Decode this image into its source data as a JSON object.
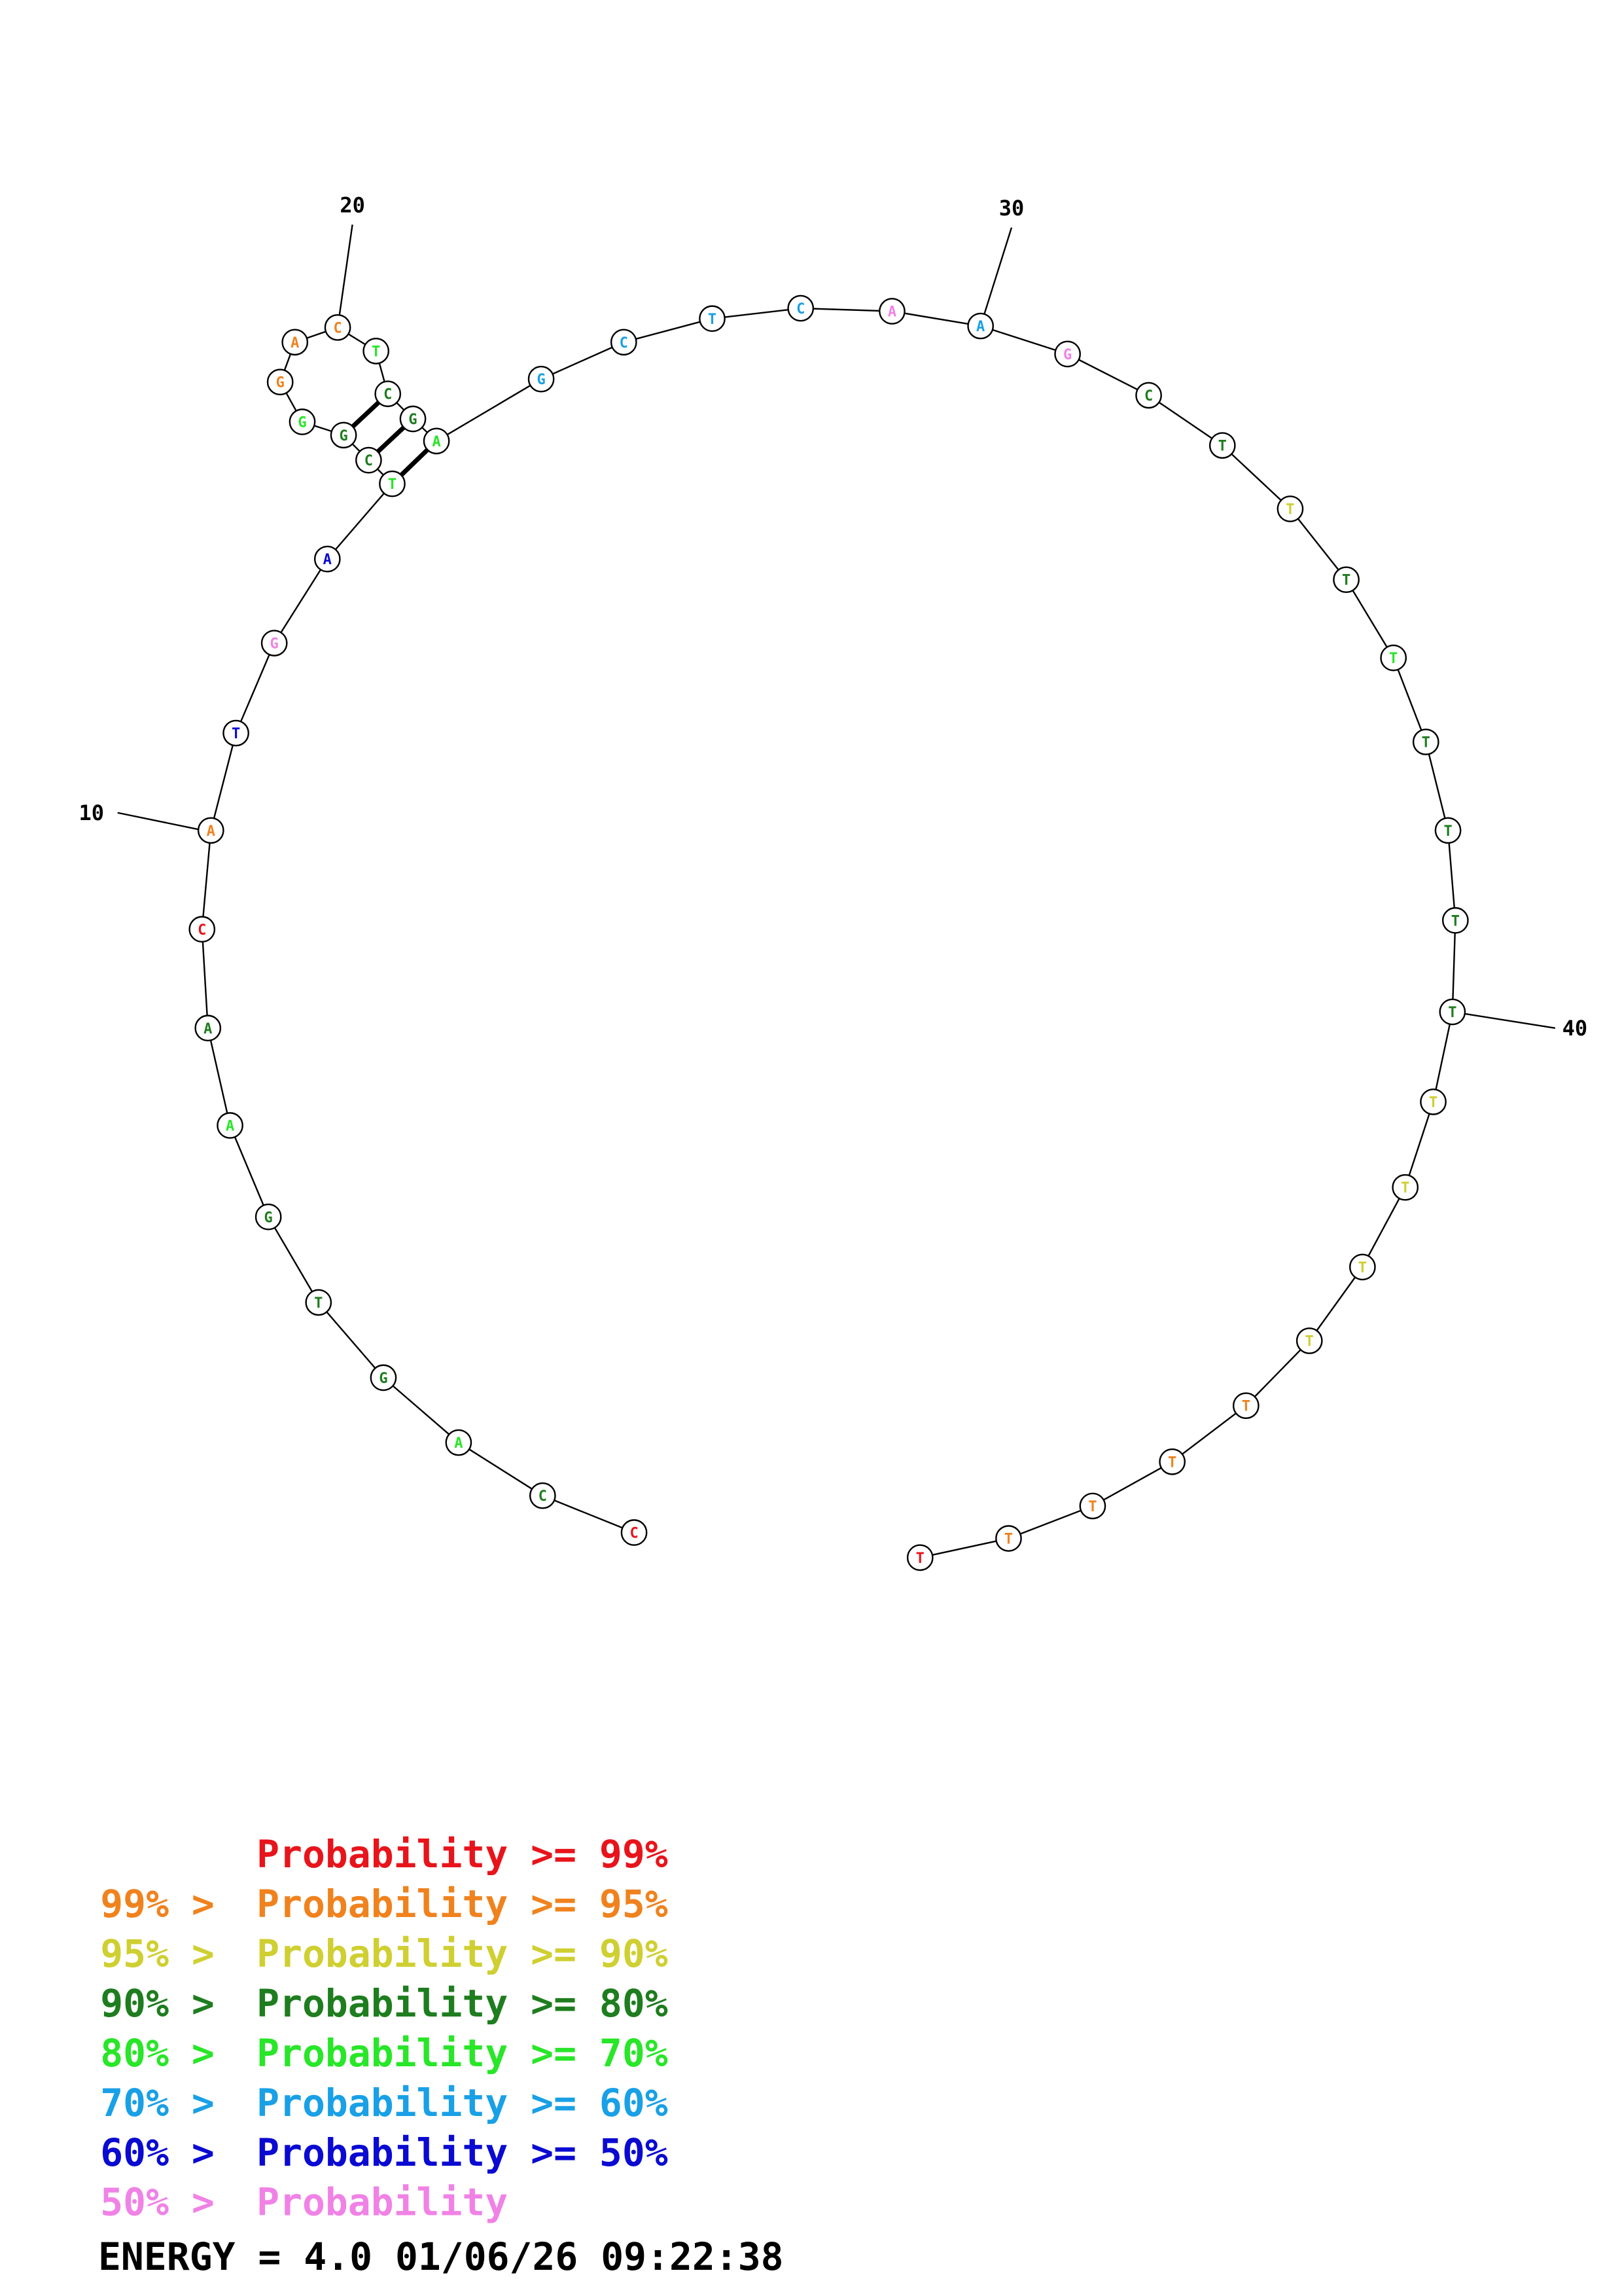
{
  "colors": {
    "p99": "#e8141b",
    "p95": "#f0821e",
    "p90": "#cfcf32",
    "p80": "#1e7d1e",
    "p70": "#28e628",
    "p60": "#19a0e6",
    "p50": "#0a0ad2",
    "plow": "#f082e6"
  },
  "structure": {
    "nucleotides": [
      {
        "base": "C",
        "prob": "p99"
      },
      {
        "base": "C",
        "prob": "p80"
      },
      {
        "base": "A",
        "prob": "p70"
      },
      {
        "base": "G",
        "prob": "p80"
      },
      {
        "base": "T",
        "prob": "p80"
      },
      {
        "base": "G",
        "prob": "p80"
      },
      {
        "base": "A",
        "prob": "p70"
      },
      {
        "base": "A",
        "prob": "p80"
      },
      {
        "base": "C",
        "prob": "p99"
      },
      {
        "base": "A",
        "prob": "p95"
      },
      {
        "base": "T",
        "prob": "p50"
      },
      {
        "base": "G",
        "prob": "plow"
      },
      {
        "base": "A",
        "prob": "p50"
      },
      {
        "base": "T",
        "prob": "p70"
      },
      {
        "base": "C",
        "prob": "p80"
      },
      {
        "base": "G",
        "prob": "p80"
      },
      {
        "base": "G",
        "prob": "p70"
      },
      {
        "base": "G",
        "prob": "p95"
      },
      {
        "base": "A",
        "prob": "p95"
      },
      {
        "base": "C",
        "prob": "p95"
      },
      {
        "base": "T",
        "prob": "p70"
      },
      {
        "base": "C",
        "prob": "p80"
      },
      {
        "base": "G",
        "prob": "p80"
      },
      {
        "base": "A",
        "prob": "p70"
      },
      {
        "base": "G",
        "prob": "p60"
      },
      {
        "base": "C",
        "prob": "p60"
      },
      {
        "base": "T",
        "prob": "p60"
      },
      {
        "base": "C",
        "prob": "p60"
      },
      {
        "base": "A",
        "prob": "plow"
      },
      {
        "base": "A",
        "prob": "p60"
      },
      {
        "base": "G",
        "prob": "plow"
      },
      {
        "base": "C",
        "prob": "p80"
      },
      {
        "base": "T",
        "prob": "p80"
      },
      {
        "base": "T",
        "prob": "p90"
      },
      {
        "base": "T",
        "prob": "p80"
      },
      {
        "base": "T",
        "prob": "p70"
      },
      {
        "base": "T",
        "prob": "p80"
      },
      {
        "base": "T",
        "prob": "p80"
      },
      {
        "base": "T",
        "prob": "p80"
      },
      {
        "base": "T",
        "prob": "p80"
      },
      {
        "base": "T",
        "prob": "p90"
      },
      {
        "base": "T",
        "prob": "p90"
      },
      {
        "base": "T",
        "prob": "p90"
      },
      {
        "base": "T",
        "prob": "p90"
      },
      {
        "base": "T",
        "prob": "p95"
      },
      {
        "base": "T",
        "prob": "p95"
      },
      {
        "base": "T",
        "prob": "p95"
      },
      {
        "base": "T",
        "prob": "p95"
      },
      {
        "base": "T",
        "prob": "p99"
      }
    ],
    "pairs": [
      [
        14,
        24
      ],
      [
        15,
        23
      ],
      [
        16,
        22
      ]
    ],
    "tick_labels": [
      {
        "pos": 10,
        "label": "10"
      },
      {
        "pos": 20,
        "label": "20"
      },
      {
        "pos": 30,
        "label": "30"
      },
      {
        "pos": 40,
        "label": "40"
      }
    ]
  },
  "legend": [
    {
      "prefix": "",
      "prefix_color": "p99",
      "text": "Probability >= 99%",
      "color": "p99"
    },
    {
      "prefix": "99% > ",
      "prefix_color": "p95",
      "text": "Probability >= 95%",
      "color": "p95"
    },
    {
      "prefix": "95% > ",
      "prefix_color": "p90",
      "text": "Probability >= 90%",
      "color": "p90"
    },
    {
      "prefix": "90% > ",
      "prefix_color": "p80",
      "text": "Probability >= 80%",
      "color": "p80"
    },
    {
      "prefix": "80% > ",
      "prefix_color": "p70",
      "text": "Probability >= 70%",
      "color": "p70"
    },
    {
      "prefix": "70% > ",
      "prefix_color": "p60",
      "text": "Probability >= 60%",
      "color": "p60"
    },
    {
      "prefix": "60% > ",
      "prefix_color": "p50",
      "text": "Probability >= 50%",
      "color": "p50"
    },
    {
      "prefix": "50% > ",
      "prefix_color": "plow",
      "text": "Probability",
      "color": "plow"
    }
  ],
  "energy": "ENERGY = 4.0  01/06/26 09:22:38"
}
